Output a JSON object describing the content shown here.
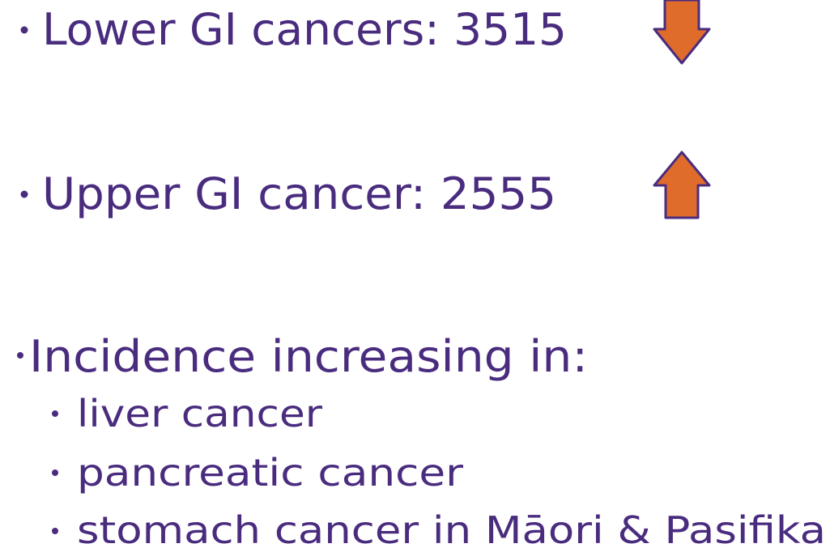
{
  "bullets": [
    "Lower GI cancers: 3515",
    "Upper GI cancer: 2555",
    "Incidence increasing in:"
  ],
  "sub_bullets": [
    "liver cancer",
    "pancreatic cancer",
    "stomach cancer in Māori & Pasifika"
  ]
}
